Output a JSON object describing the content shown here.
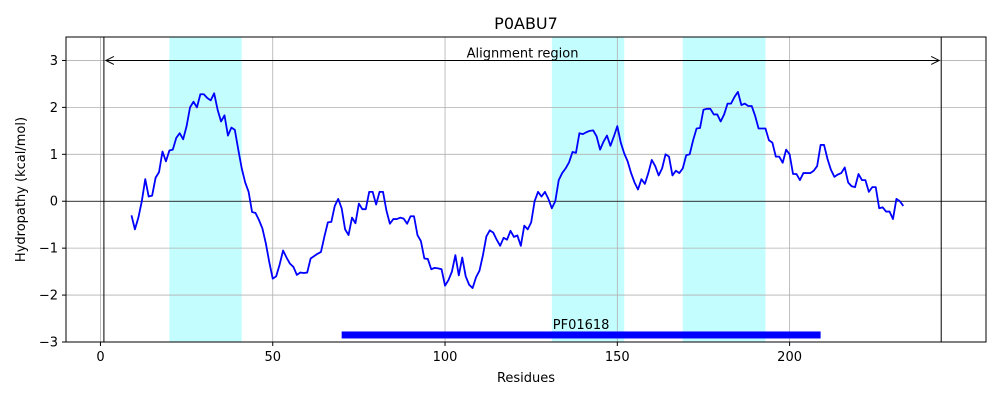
{
  "chart_data": {
    "type": "line",
    "title": "P0ABU7",
    "xlabel": "Residues",
    "ylabel": "Hydropathy (kcal/mol)",
    "xlim": [
      -10,
      257
    ],
    "ylim": [
      -3,
      3.5
    ],
    "xticks": [
      0,
      50,
      100,
      150,
      200
    ],
    "yticks": [
      -3,
      -2,
      -1,
      0,
      1,
      2,
      3
    ],
    "grid": true,
    "colors": {
      "line": "#0000ff",
      "band": "#c4fdfd",
      "domain_bar": "#0000ff",
      "arrow": "#000000"
    },
    "highlight_regions": [
      {
        "x0": 20,
        "x1": 41
      },
      {
        "x0": 131,
        "x1": 152
      },
      {
        "x0": 169,
        "x1": 193
      }
    ],
    "alignment_region": {
      "label": "Alignment region",
      "x0": 1,
      "x1": 244,
      "y": 3.0
    },
    "domain": {
      "label": "PF01618",
      "x0": 70,
      "x1": 209,
      "y": -2.85
    },
    "series": [
      {
        "x": [
          9,
          10,
          11,
          12,
          13,
          14,
          15,
          16,
          17,
          18,
          19,
          20,
          21,
          22,
          23,
          24,
          25,
          26,
          27,
          28,
          29,
          30,
          31,
          32,
          33,
          34,
          35,
          36,
          37,
          38,
          39,
          40,
          41,
          42,
          43,
          44,
          45,
          46,
          47,
          48,
          49,
          50,
          51,
          52,
          53,
          54,
          55,
          56,
          57,
          58,
          59,
          60,
          61,
          62,
          63,
          64,
          65,
          66,
          67,
          68,
          69,
          70,
          71,
          72,
          73,
          74,
          75,
          76,
          77,
          78,
          79,
          80,
          81,
          82,
          83,
          84,
          85,
          86,
          87,
          88,
          89,
          90,
          91,
          92,
          93,
          94,
          95,
          96,
          97,
          98,
          99,
          100,
          101,
          102,
          103,
          104,
          105,
          106,
          107,
          108,
          109,
          110,
          111,
          112,
          113,
          114,
          115,
          116,
          117,
          118,
          119,
          120,
          121,
          122,
          123,
          124,
          125,
          126,
          127,
          128,
          129,
          130,
          131,
          132,
          133,
          134,
          135,
          136,
          137,
          138,
          139,
          140,
          141,
          142,
          143,
          144,
          145,
          146,
          147,
          148,
          149,
          150,
          151,
          152,
          153,
          154,
          155,
          156,
          157,
          158,
          159,
          160,
          161,
          162,
          163,
          164,
          165,
          166,
          167,
          168,
          169,
          170,
          171,
          172,
          173,
          174,
          175,
          176,
          177,
          178,
          179,
          180,
          181,
          182,
          183,
          184,
          185,
          186,
          187,
          188,
          189,
          190,
          191,
          192,
          193,
          194,
          195,
          196,
          197,
          198,
          199,
          200,
          201,
          202,
          203,
          204,
          205,
          206,
          207,
          208,
          209,
          210,
          211,
          212,
          213,
          214,
          215,
          216,
          217,
          218,
          219,
          220,
          221,
          222,
          223,
          224,
          225,
          226,
          227,
          228,
          229,
          230,
          231,
          232,
          233
        ],
        "y": [
          -0.3,
          -0.6,
          -0.35,
          0.0,
          0.47,
          0.1,
          0.12,
          0.5,
          0.62,
          1.06,
          0.85,
          1.08,
          1.1,
          1.35,
          1.45,
          1.32,
          1.6,
          2.0,
          2.12,
          2.0,
          2.28,
          2.28,
          2.2,
          2.15,
          2.3,
          1.95,
          1.7,
          1.83,
          1.4,
          1.57,
          1.52,
          1.1,
          0.7,
          0.4,
          0.2,
          -0.23,
          -0.25,
          -0.4,
          -0.58,
          -0.9,
          -1.3,
          -1.65,
          -1.6,
          -1.35,
          -1.05,
          -1.2,
          -1.33,
          -1.4,
          -1.57,
          -1.52,
          -1.53,
          -1.52,
          -1.22,
          -1.17,
          -1.12,
          -1.08,
          -0.75,
          -0.45,
          -0.44,
          -0.1,
          0.05,
          -0.15,
          -0.6,
          -0.72,
          -0.35,
          -0.47,
          -0.05,
          -0.17,
          -0.17,
          0.2,
          0.2,
          -0.07,
          0.2,
          0.2,
          -0.2,
          -0.48,
          -0.38,
          -0.38,
          -0.35,
          -0.37,
          -0.48,
          -0.32,
          -0.32,
          -0.72,
          -0.85,
          -1.22,
          -1.23,
          -1.45,
          -1.42,
          -1.43,
          -1.45,
          -1.8,
          -1.68,
          -1.5,
          -1.15,
          -1.58,
          -1.2,
          -1.6,
          -1.78,
          -1.85,
          -1.62,
          -1.48,
          -1.15,
          -0.75,
          -0.62,
          -0.67,
          -0.82,
          -0.95,
          -0.78,
          -0.82,
          -0.63,
          -0.76,
          -0.73,
          -0.95,
          -0.52,
          -0.6,
          -0.45,
          0.0,
          0.2,
          0.1,
          0.2,
          0.05,
          -0.15,
          0.0,
          0.45,
          0.6,
          0.7,
          0.83,
          1.05,
          1.03,
          1.45,
          1.43,
          1.47,
          1.5,
          1.51,
          1.38,
          1.1,
          1.27,
          1.4,
          1.18,
          1.38,
          1.6,
          1.25,
          1.02,
          0.85,
          0.6,
          0.4,
          0.25,
          0.47,
          0.37,
          0.6,
          0.88,
          0.75,
          0.55,
          0.7,
          1.0,
          0.95,
          0.55,
          0.65,
          0.6,
          0.7,
          0.98,
          1.0,
          1.3,
          1.55,
          1.56,
          1.95,
          1.97,
          1.97,
          1.85,
          1.85,
          1.7,
          1.85,
          2.08,
          2.08,
          2.22,
          2.33,
          2.05,
          2.08,
          2.03,
          2.03,
          1.82,
          1.55,
          1.55,
          1.55,
          1.3,
          1.25,
          0.95,
          0.95,
          0.82,
          1.1,
          1.0,
          0.58,
          0.58,
          0.45,
          0.6,
          0.6,
          0.6,
          0.65,
          0.75,
          1.2,
          1.2,
          0.9,
          0.67,
          0.52,
          0.57,
          0.6,
          0.72,
          0.4,
          0.32,
          0.3,
          0.58,
          0.45,
          0.45,
          0.2,
          0.3,
          0.3,
          -0.15,
          -0.13,
          -0.22,
          -0.22,
          -0.38,
          0.05,
          0.0,
          -0.1
        ]
      }
    ]
  }
}
